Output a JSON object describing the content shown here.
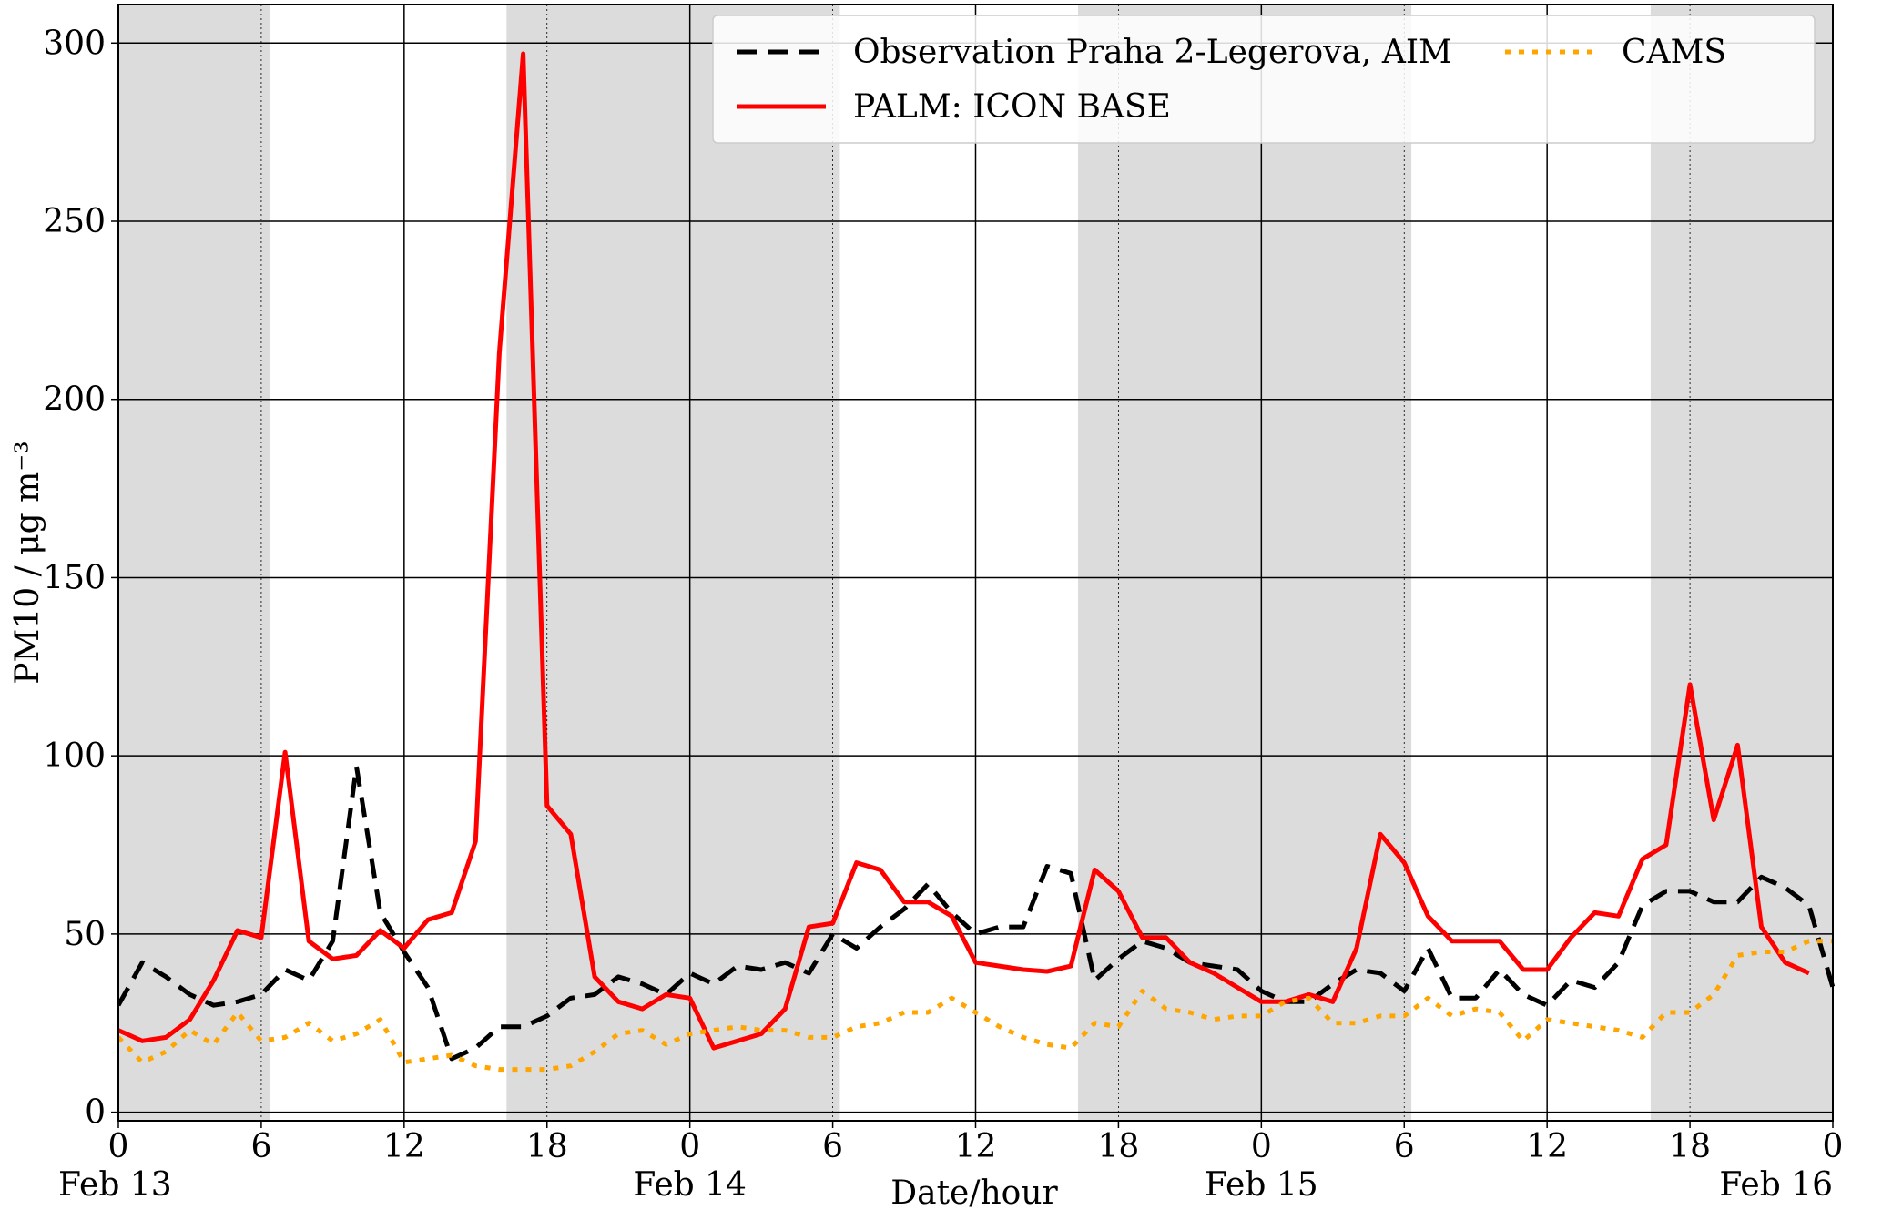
{
  "chart_data": {
    "type": "line",
    "x_label": "Date/hour",
    "y_label": "PM10 / μg m⁻³",
    "x": [
      0,
      1,
      2,
      3,
      4,
      5,
      6,
      7,
      8,
      9,
      10,
      11,
      12,
      13,
      14,
      15,
      16,
      17,
      18,
      19,
      20,
      21,
      22,
      23,
      24,
      25,
      26,
      27,
      28,
      29,
      30,
      31,
      32,
      33,
      34,
      35,
      36,
      37,
      38,
      39,
      40,
      41,
      42,
      43,
      44,
      45,
      46,
      47,
      48,
      49,
      50,
      51,
      52,
      53,
      54,
      55,
      56,
      57,
      58,
      59,
      60,
      61,
      62,
      63,
      64,
      65,
      66,
      67,
      68,
      69,
      70,
      71,
      72
    ],
    "xlim": [
      0,
      72
    ],
    "xticks": [
      0,
      6,
      12,
      18,
      {
        "value": 24,
        "label": "0"
      },
      {
        "value": 30,
        "label": "6"
      },
      {
        "value": 36,
        "label": "12"
      },
      {
        "value": 42,
        "label": "18"
      },
      {
        "value": 48,
        "label": "0"
      },
      {
        "value": 54,
        "label": "6"
      },
      {
        "value": 60,
        "label": "12"
      },
      {
        "value": 66,
        "label": "18"
      },
      {
        "value": 72,
        "label": "0"
      }
    ],
    "date_labels": [
      {
        "value": 0,
        "label": "Feb 13"
      },
      {
        "value": 24,
        "label": "Feb 14"
      },
      {
        "value": 48,
        "label": "Feb 15"
      },
      {
        "value": 72,
        "label": "Feb 16"
      }
    ],
    "ylim": [
      -2.4,
      310.8
    ],
    "yticks": [
      0,
      50,
      100,
      150,
      200,
      250,
      300
    ],
    "grid": true,
    "shaded_periods": [
      [
        0,
        6.35
      ],
      [
        16.3,
        30.3
      ],
      [
        40.3,
        54.3
      ],
      [
        64.35,
        72
      ]
    ],
    "shade_color": "#dcdcdc",
    "legend_position": "upper right",
    "series": [
      {
        "name": "Observation Praha 2-Legerova, AIM",
        "color": "#000000",
        "style": "dashed",
        "values": [
          30,
          42,
          38,
          33,
          30,
          31,
          33,
          40,
          37,
          48,
          97,
          56,
          45,
          35,
          15,
          18,
          24,
          24,
          27,
          32,
          33,
          38,
          36,
          33,
          39,
          36,
          41,
          40,
          42,
          39,
          50,
          46,
          52,
          57,
          64,
          56,
          50,
          52,
          52,
          69,
          67,
          37,
          43,
          48,
          46,
          42,
          41,
          40,
          34,
          31,
          31,
          36,
          40,
          39,
          34,
          46,
          32,
          32,
          40,
          33,
          30,
          37,
          35,
          42,
          58,
          62,
          62,
          59,
          59,
          66,
          63,
          58,
          35
        ]
      },
      {
        "name": "PALM: ICON BASE",
        "color": "#ff0000",
        "style": "solid",
        "values": [
          23,
          20,
          21,
          26,
          37,
          51,
          49,
          101,
          48,
          43,
          44,
          51,
          46,
          54,
          56,
          76,
          213,
          297,
          86,
          78,
          38,
          31,
          29,
          33,
          32,
          18,
          20,
          22,
          29,
          52,
          53,
          70,
          68,
          59,
          59,
          55,
          42,
          41,
          40,
          39.5,
          41,
          68,
          62,
          49,
          49,
          42,
          39,
          35,
          31,
          31,
          33,
          31,
          46,
          78,
          70,
          55,
          48,
          48,
          48,
          40,
          40,
          49,
          56,
          55,
          71,
          75,
          120,
          82,
          103,
          52,
          42,
          39,
          null
        ]
      },
      {
        "name": "CAMS",
        "color": "#ffa500",
        "style": "dotted",
        "values": [
          21,
          14,
          17,
          23,
          19,
          28,
          20,
          21,
          25,
          20,
          22,
          26,
          14,
          15,
          16,
          13,
          12,
          12,
          12,
          13,
          17,
          22,
          23,
          19,
          22,
          23,
          24,
          23,
          23,
          21,
          21,
          24,
          25,
          28,
          28,
          32,
          28,
          24,
          21,
          19,
          18,
          25,
          24,
          34,
          29,
          28,
          26,
          27,
          27,
          31,
          32,
          25,
          25,
          27,
          27,
          32,
          27,
          29,
          28,
          20,
          26,
          25,
          24,
          23,
          21,
          28,
          28,
          33,
          44,
          45,
          45,
          48,
          48
        ]
      }
    ]
  }
}
